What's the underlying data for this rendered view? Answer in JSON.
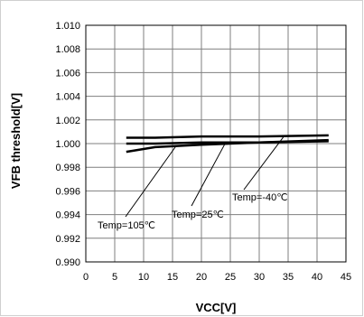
{
  "chart_data": {
    "type": "line",
    "xlabel": "VCC[V]",
    "ylabel": "VFB threshold[V]",
    "xlim": [
      0,
      45
    ],
    "ylim": [
      0.99,
      1.01
    ],
    "x_ticks": [
      "0",
      "5",
      "10",
      "15",
      "20",
      "25",
      "30",
      "35",
      "40",
      "45"
    ],
    "y_ticks": [
      "0.990",
      "0.992",
      "0.994",
      "0.996",
      "0.998",
      "1.000",
      "1.002",
      "1.004",
      "1.006",
      "1.008",
      "1.010"
    ],
    "grid": true,
    "series": [
      {
        "name": "Temp=105℃",
        "x": [
          7,
          12,
          20,
          30,
          42
        ],
        "y": [
          0.9993,
          0.9997,
          0.9999,
          1.0001,
          1.0002
        ]
      },
      {
        "name": "Temp=25℃",
        "x": [
          7,
          12,
          20,
          30,
          42
        ],
        "y": [
          1.0,
          1.0,
          1.0001,
          1.0001,
          1.0003
        ]
      },
      {
        "name": "Temp=-40℃",
        "x": [
          7,
          12,
          20,
          30,
          42
        ],
        "y": [
          1.0005,
          1.0005,
          1.0006,
          1.0006,
          1.0007
        ]
      }
    ],
    "annotations": [
      {
        "text": "Temp=105℃",
        "series": 0
      },
      {
        "text": "Temp=25℃",
        "series": 1
      },
      {
        "text": "Temp=-40℃",
        "series": 2
      }
    ],
    "line_color": "#000000",
    "grid_color": "#7f7f7f"
  }
}
